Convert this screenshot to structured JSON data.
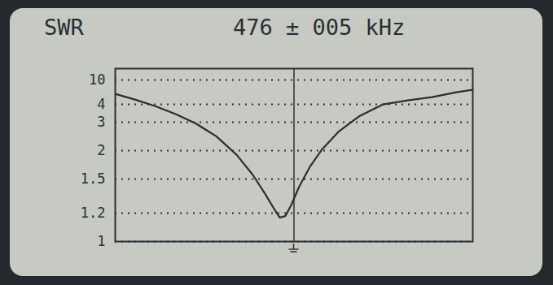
{
  "chart_data": {
    "type": "line",
    "title": "SWR",
    "subtitle": "476 ± 005 kHz",
    "x": [
      471.0,
      471.55,
      472.12,
      472.69,
      473.26,
      473.82,
      474.39,
      474.85,
      475.19,
      475.42,
      475.6,
      475.76,
      475.92,
      476.14,
      476.44,
      476.79,
      477.24,
      477.81,
      478.49,
      479.18,
      479.86,
      480.54,
      481.0
    ],
    "values": [
      6.6,
      5.2,
      3.9,
      3.46,
      2.95,
      2.51,
      1.93,
      1.57,
      1.37,
      1.25,
      1.17,
      1.18,
      1.27,
      1.43,
      1.71,
      2.05,
      2.66,
      3.32,
      4.0,
      5.0,
      5.8,
      7.0,
      7.6
    ],
    "color": "#2b2f33",
    "line_style": "solid",
    "xlim": [
      471,
      481
    ],
    "xticks": [
      476
    ],
    "ylim": [
      1,
      20
    ],
    "yticks": [
      1,
      1.2,
      1.5,
      2,
      3,
      4,
      10
    ],
    "grid": true,
    "tick_labels": "y"
  }
}
